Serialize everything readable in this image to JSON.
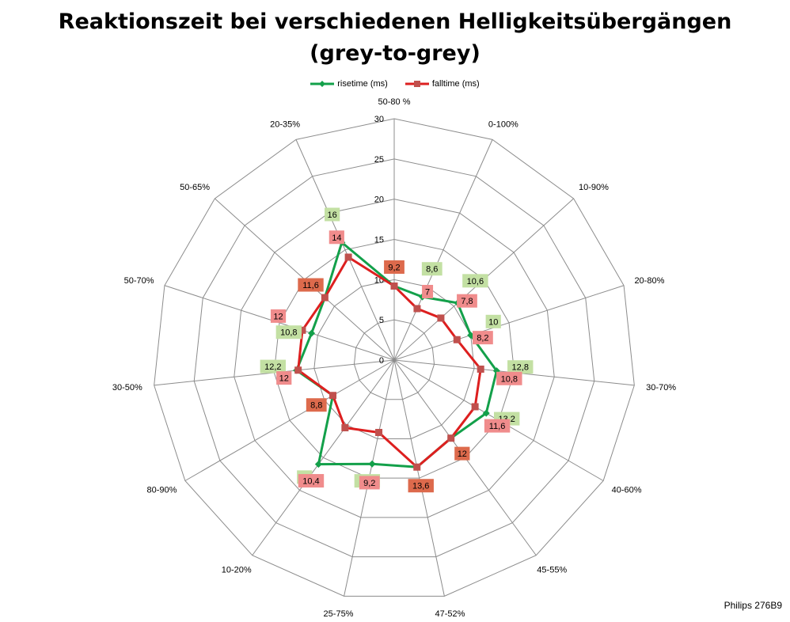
{
  "title_line1": "Reaktionszeit bei verschiedenen Helligkeitsübergängen",
  "title_line2": "(grey-to-grey)",
  "footer": "Philips 276B9",
  "colors": {
    "rise": "#13a04a",
    "fall": "#dd1f1f",
    "fall_marker": "#c0504d",
    "grid": "#8c8c8c",
    "label_green": "#c3e0a3",
    "label_pink": "#f08c8c",
    "label_orange": "#dd6a4c"
  },
  "chart_data": {
    "type": "radar",
    "categories": [
      "50-80 %",
      "0-100%",
      "10-90%",
      "20-80%",
      "30-70%",
      "40-60%",
      "45-55%",
      "47-52%",
      "25-75%",
      "10-20%",
      "80-90%",
      "30-50%",
      "50-70%",
      "50-65%",
      "20-35%"
    ],
    "rlim": [
      0,
      30
    ],
    "rticks": [
      0,
      5,
      10,
      15,
      20,
      25,
      30
    ],
    "legend_position": "top",
    "series": [
      {
        "name": "risetime (ms)",
        "marker": "diamond",
        "values": [
          9.2,
          8.6,
          10.6,
          10,
          12.8,
          13.2,
          12,
          13.6,
          13.2,
          16,
          8.8,
          12.2,
          10.8,
          11.6,
          16
        ],
        "labels": [
          "9,2",
          "8,6",
          "10,6",
          "10",
          "12,8",
          "13,2",
          "12",
          "13,6",
          "13,2",
          "16",
          "8,8",
          "12,2",
          "10,8",
          "11,6",
          "16"
        ]
      },
      {
        "name": "falltime (ms)",
        "marker": "square",
        "values": [
          9.2,
          7,
          7.8,
          8.2,
          10.8,
          11.6,
          12,
          13.6,
          9.2,
          10.4,
          8.8,
          12,
          12,
          11.6,
          14
        ],
        "labels": [
          "9,2",
          "7",
          "7,8",
          "8,2",
          "10,8",
          "11,6",
          "12",
          "13,6",
          "9,2",
          "10,4",
          "8,8",
          "12",
          "12",
          "11,6",
          "14"
        ]
      }
    ]
  }
}
